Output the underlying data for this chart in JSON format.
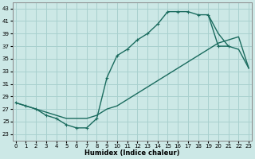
{
  "xlabel": "Humidex (Indice chaleur)",
  "background_color": "#cce8e6",
  "grid_color": "#a8d0ce",
  "line_color": "#1a6b5e",
  "xlim": [
    -0.3,
    23.3
  ],
  "ylim": [
    22.0,
    44.0
  ],
  "xticks": [
    0,
    1,
    2,
    3,
    4,
    5,
    6,
    7,
    8,
    9,
    10,
    11,
    12,
    13,
    14,
    15,
    16,
    17,
    18,
    19,
    20,
    21,
    22,
    23
  ],
  "yticks": [
    23,
    25,
    27,
    29,
    31,
    33,
    35,
    37,
    39,
    41,
    43
  ],
  "curve_x": [
    0,
    1,
    2,
    3,
    4,
    5,
    6,
    7,
    8,
    9,
    10,
    11,
    12,
    13,
    14,
    15,
    16,
    17,
    18,
    19,
    20,
    21
  ],
  "curve_y": [
    28,
    27.5,
    27,
    26,
    25.5,
    24.5,
    24,
    24,
    25.5,
    32,
    35.5,
    36.5,
    38,
    39,
    40.5,
    42.5,
    42.5,
    42.5,
    42,
    42,
    37,
    37
  ],
  "diag_x": [
    0,
    1,
    2,
    3,
    4,
    5,
    6,
    7,
    8,
    9,
    10,
    11,
    12,
    13,
    14,
    15,
    16,
    17,
    18,
    19,
    20,
    21,
    22,
    23
  ],
  "diag_y": [
    28,
    27.5,
    27,
    26.5,
    26,
    25.5,
    25.5,
    25.5,
    26,
    27,
    27.5,
    28.5,
    29.5,
    30.5,
    31.5,
    32.5,
    33.5,
    34.5,
    35.5,
    36.5,
    37.5,
    38,
    38.5,
    33.5
  ],
  "right_x": [
    19,
    20,
    21,
    22,
    23
  ],
  "right_y": [
    42,
    39,
    37,
    36.5,
    33.5
  ]
}
